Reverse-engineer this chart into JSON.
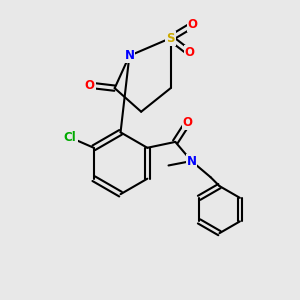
{
  "background_color": "#e8e8e8",
  "atom_colors": {
    "C": "#000000",
    "N": "#0000ff",
    "O": "#ff0000",
    "S": "#ccaa00",
    "Cl": "#00aa00"
  },
  "figsize": [
    3.0,
    3.0
  ],
  "dpi": 100,
  "lw": 1.5,
  "fs": 8.5
}
